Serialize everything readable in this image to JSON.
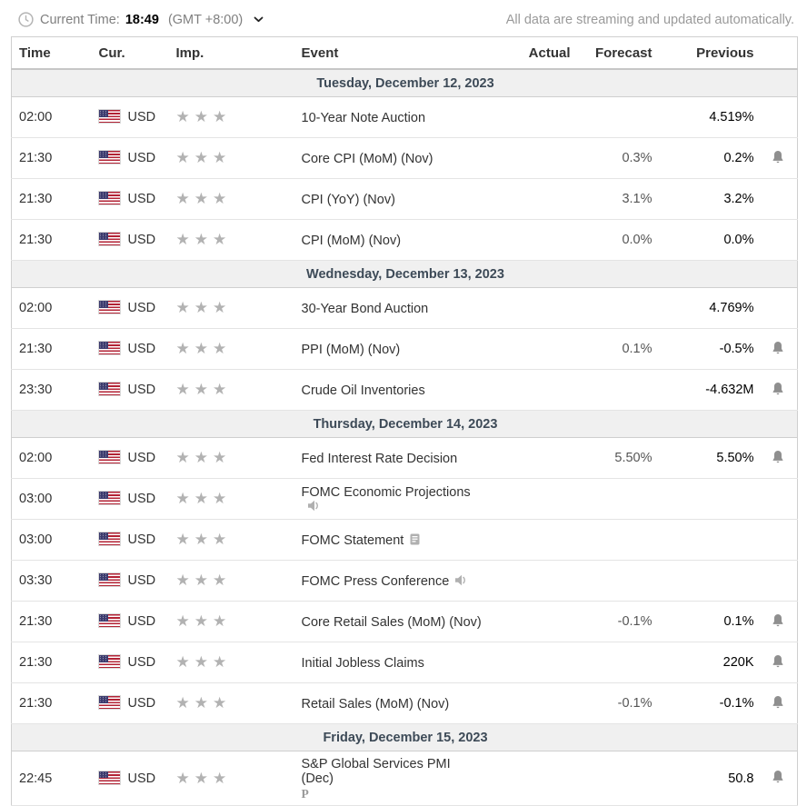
{
  "topbar": {
    "current_time_label": "Current Time:",
    "current_time": "18:49",
    "timezone": "(GMT +8:00)",
    "streaming_note": "All data are streaming and updated automatically."
  },
  "table": {
    "headers": {
      "time": "Time",
      "cur": "Cur.",
      "imp": "Imp.",
      "event": "Event",
      "actual": "Actual",
      "forecast": "Forecast",
      "previous": "Previous"
    },
    "groups": [
      {
        "date": "Tuesday, December 12, 2023",
        "rows": [
          {
            "time": "02:00",
            "currency": "USD",
            "flag": "us-flag",
            "importance": 3,
            "event": "10-Year Note Auction",
            "event_icon": null,
            "event_note": null,
            "actual": "",
            "forecast": "",
            "previous": "4.519%",
            "alert": false
          },
          {
            "time": "21:30",
            "currency": "USD",
            "flag": "us-flag",
            "importance": 3,
            "event": "Core CPI (MoM) (Nov)",
            "event_icon": null,
            "event_note": null,
            "actual": "",
            "forecast": "0.3%",
            "previous": "0.2%",
            "alert": true
          },
          {
            "time": "21:30",
            "currency": "USD",
            "flag": "us-flag",
            "importance": 3,
            "event": "CPI (YoY) (Nov)",
            "event_icon": null,
            "event_note": null,
            "actual": "",
            "forecast": "3.1%",
            "previous": "3.2%",
            "alert": false
          },
          {
            "time": "21:30",
            "currency": "USD",
            "flag": "us-flag",
            "importance": 3,
            "event": "CPI (MoM) (Nov)",
            "event_icon": null,
            "event_note": null,
            "actual": "",
            "forecast": "0.0%",
            "previous": "0.0%",
            "alert": false
          }
        ]
      },
      {
        "date": "Wednesday, December 13, 2023",
        "rows": [
          {
            "time": "02:00",
            "currency": "USD",
            "flag": "us-flag",
            "importance": 3,
            "event": "30-Year Bond Auction",
            "event_icon": null,
            "event_note": null,
            "actual": "",
            "forecast": "",
            "previous": "4.769%",
            "alert": false
          },
          {
            "time": "21:30",
            "currency": "USD",
            "flag": "us-flag",
            "importance": 3,
            "event": "PPI (MoM) (Nov)",
            "event_icon": null,
            "event_note": null,
            "actual": "",
            "forecast": "0.1%",
            "previous": "-0.5%",
            "alert": true
          },
          {
            "time": "23:30",
            "currency": "USD",
            "flag": "us-flag",
            "importance": 3,
            "event": "Crude Oil Inventories",
            "event_icon": null,
            "event_note": null,
            "actual": "",
            "forecast": "",
            "previous": "-4.632M",
            "alert": true
          }
        ]
      },
      {
        "date": "Thursday, December 14, 2023",
        "rows": [
          {
            "time": "02:00",
            "currency": "USD",
            "flag": "us-flag",
            "importance": 3,
            "event": "Fed Interest Rate Decision",
            "event_icon": null,
            "event_note": null,
            "actual": "",
            "forecast": "5.50%",
            "previous": "5.50%",
            "alert": true
          },
          {
            "time": "03:00",
            "currency": "USD",
            "flag": "us-flag",
            "importance": 3,
            "event": "FOMC Economic Projections",
            "event_icon": "speech",
            "event_note": null,
            "actual": "",
            "forecast": "",
            "previous": "",
            "alert": false
          },
          {
            "time": "03:00",
            "currency": "USD",
            "flag": "us-flag",
            "importance": 3,
            "event": "FOMC Statement",
            "event_icon": "report",
            "event_note": null,
            "actual": "",
            "forecast": "",
            "previous": "",
            "alert": false
          },
          {
            "time": "03:30",
            "currency": "USD",
            "flag": "us-flag",
            "importance": 3,
            "event": "FOMC Press Conference",
            "event_icon": "speech",
            "event_note": null,
            "actual": "",
            "forecast": "",
            "previous": "",
            "alert": false
          },
          {
            "time": "21:30",
            "currency": "USD",
            "flag": "us-flag",
            "importance": 3,
            "event": "Core Retail Sales (MoM) (Nov)",
            "event_icon": null,
            "event_note": null,
            "actual": "",
            "forecast": "-0.1%",
            "previous": "0.1%",
            "alert": true
          },
          {
            "time": "21:30",
            "currency": "USD",
            "flag": "us-flag",
            "importance": 3,
            "event": "Initial Jobless Claims",
            "event_icon": null,
            "event_note": null,
            "actual": "",
            "forecast": "",
            "previous": "220K",
            "alert": true
          },
          {
            "time": "21:30",
            "currency": "USD",
            "flag": "us-flag",
            "importance": 3,
            "event": "Retail Sales (MoM) (Nov)",
            "event_icon": null,
            "event_note": null,
            "actual": "",
            "forecast": "-0.1%",
            "previous": "-0.1%",
            "alert": true
          }
        ]
      },
      {
        "date": "Friday, December 15, 2023",
        "rows": [
          {
            "time": "22:45",
            "currency": "USD",
            "flag": "us-flag",
            "importance": 3,
            "event": "S&P Global Services PMI (Dec)",
            "event_icon": null,
            "event_note": "P",
            "actual": "",
            "forecast": "",
            "previous": "50.8",
            "alert": true
          }
        ]
      }
    ]
  },
  "colors": {
    "star": "#b2b2b2",
    "date_row_bg": "#f0f0f0",
    "date_row_text": "#3d4a57",
    "flag_red": "#B22234",
    "flag_blue": "#3C3B6E",
    "forecast_text": "#555555",
    "previous_text": "#000000",
    "alert_bell": "#8f8f8f"
  }
}
